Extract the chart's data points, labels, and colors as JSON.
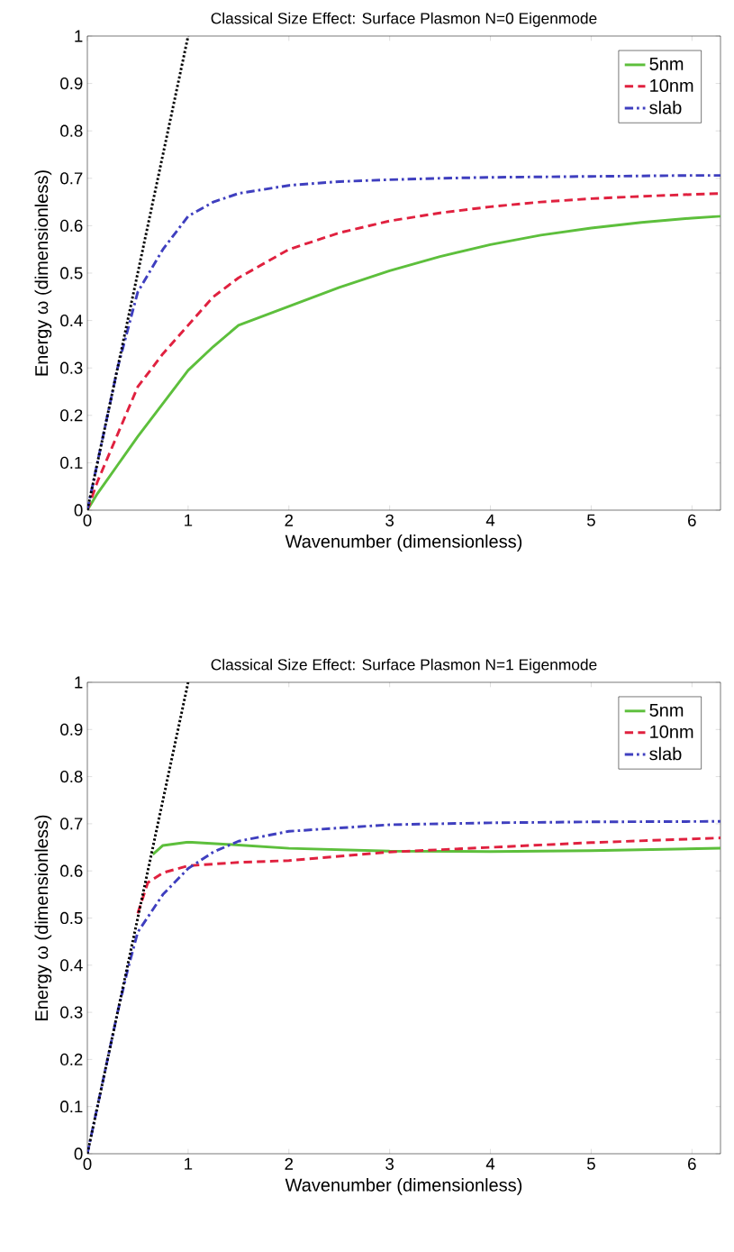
{
  "chart_data": [
    {
      "type": "line",
      "title": "Classical Size Effect: Surface Plasmon N=0 Eigenmode",
      "xlabel": "Wavenumber (dimensionless)",
      "ylabel": "Energy ω (dimensionless)",
      "x": [
        0,
        0.1,
        0.2,
        0.3,
        0.5,
        0.75,
        1,
        1.25,
        1.5,
        2,
        2.5,
        3,
        3.5,
        4,
        4.5,
        5,
        5.5,
        6,
        6.2832
      ],
      "series": [
        {
          "name": "5nm",
          "color": "#5dbf3c",
          "line_style": "solid",
          "values": [
            0,
            0.035,
            0.065,
            0.095,
            0.155,
            0.225,
            0.295,
            0.345,
            0.39,
            0.43,
            0.47,
            0.505,
            0.535,
            0.56,
            0.58,
            0.595,
            0.607,
            0.616,
            0.62
          ]
        },
        {
          "name": "10nm",
          "color": "#e0213f",
          "line_style": "dashed",
          "values": [
            0,
            0.06,
            0.11,
            0.16,
            0.26,
            0.33,
            0.39,
            0.45,
            0.49,
            0.55,
            0.585,
            0.61,
            0.627,
            0.64,
            0.65,
            0.657,
            0.662,
            0.666,
            0.668
          ]
        },
        {
          "name": "slab",
          "color": "#3f3fbf",
          "line_style": "dashdot",
          "values": [
            0,
            0.1,
            0.2,
            0.3,
            0.46,
            0.55,
            0.62,
            0.65,
            0.668,
            0.685,
            0.693,
            0.697,
            0.7,
            0.702,
            0.703,
            0.704,
            0.705,
            0.706,
            0.706
          ]
        },
        {
          "color": "#000000",
          "line_style": "dotted",
          "x": [
            0,
            1
          ],
          "values": [
            0,
            1
          ]
        }
      ],
      "xlim": [
        0,
        6.2832
      ],
      "ylim": [
        0,
        1
      ],
      "xticks": [
        0,
        1,
        2,
        3,
        4,
        5,
        6
      ],
      "yticks": [
        0,
        0.1,
        0.2,
        0.3,
        0.4,
        0.5,
        0.6,
        0.7,
        0.8,
        0.9,
        1
      ],
      "legend": "top right"
    },
    {
      "type": "line",
      "title": "Classical Size Effect: Surface Plasmon N=1 Eigenmode",
      "xlabel": "Wavenumber (dimensionless)",
      "ylabel": "Energy ω (dimensionless)",
      "series": [
        {
          "name": "5nm",
          "color": "#5dbf3c",
          "line_style": "solid",
          "x": [
            0.65,
            0.75,
            1,
            1.5,
            2,
            3,
            4,
            5,
            6.2832
          ],
          "values": [
            0.635,
            0.654,
            0.661,
            0.655,
            0.648,
            0.642,
            0.641,
            0.643,
            0.648
          ]
        },
        {
          "name": "10nm",
          "color": "#e0213f",
          "line_style": "dashed",
          "x": [
            0.5,
            0.6,
            0.75,
            1,
            1.5,
            2,
            3,
            4,
            5,
            6.2832
          ],
          "values": [
            0.51,
            0.575,
            0.596,
            0.611,
            0.618,
            0.622,
            0.64,
            0.65,
            0.66,
            0.67
          ]
        },
        {
          "name": "slab",
          "color": "#3f3fbf",
          "line_style": "dashdot",
          "x": [
            0,
            0.1,
            0.2,
            0.3,
            0.4,
            0.5,
            0.75,
            1,
            1.25,
            1.5,
            2,
            3,
            4,
            5,
            6.2832
          ],
          "values": [
            0,
            0.1,
            0.2,
            0.3,
            0.39,
            0.47,
            0.55,
            0.605,
            0.64,
            0.663,
            0.684,
            0.698,
            0.702,
            0.704,
            0.705
          ]
        },
        {
          "color": "#000000",
          "line_style": "dotted",
          "x": [
            0,
            1
          ],
          "values": [
            0,
            1
          ]
        }
      ],
      "xlim": [
        0,
        6.2832
      ],
      "ylim": [
        0,
        1
      ],
      "xticks": [
        0,
        1,
        2,
        3,
        4,
        5,
        6
      ],
      "yticks": [
        0,
        0.1,
        0.2,
        0.3,
        0.4,
        0.5,
        0.6,
        0.7,
        0.8,
        0.9,
        1
      ],
      "legend": "top right"
    }
  ]
}
